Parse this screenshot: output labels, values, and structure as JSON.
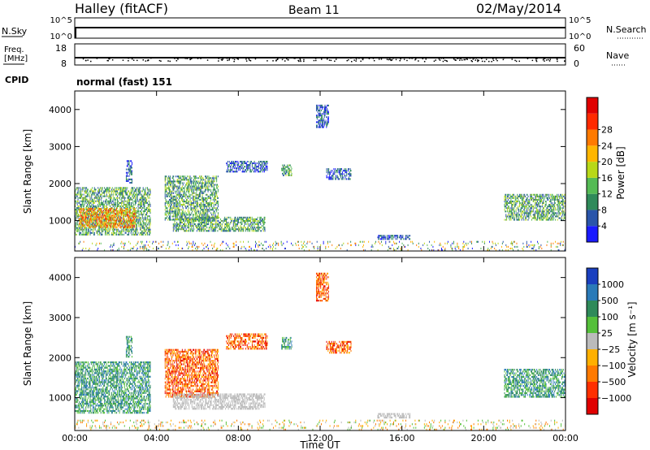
{
  "header": {
    "station": "Halley (fitACF)",
    "beam": "Beam 11",
    "date": "02/May/2014"
  },
  "top_panels": {
    "nsky": {
      "label": "N.Sky",
      "ticks": [
        "10^5",
        "10^0"
      ]
    },
    "nsearch": {
      "label": "N.Search",
      "ticks": [
        "10^5",
        "10^0"
      ]
    },
    "freq": {
      "label_line1": "Freq.",
      "label_line2": "[MHz]",
      "ticks": [
        "18",
        "8"
      ]
    },
    "nave": {
      "label": "Nave",
      "ticks": [
        "60",
        "0"
      ]
    },
    "cpid": {
      "label": "CPID",
      "value": "normal (fast) 151"
    }
  },
  "chart_data": [
    {
      "type": "heatmap",
      "name": "power",
      "ylabel": "Slant Range [km]",
      "xlabel": "Time UT",
      "x_ticks": [
        "00:00",
        "04:00",
        "08:00",
        "12:00",
        "16:00",
        "20:00",
        "00:00"
      ],
      "xlim_hours": [
        0,
        24
      ],
      "ylim_km": [
        180,
        4500
      ],
      "y_ticks": [
        1000,
        2000,
        3000,
        4000
      ],
      "colorbar": {
        "label": "Power [dB]",
        "ticks": [
          "4",
          "8",
          "12",
          "16",
          "20",
          "24",
          "28"
        ],
        "colors": [
          "#1a1aff",
          "#2a55aa",
          "#2f8a5a",
          "#55bb55",
          "#b8d818",
          "#ffb600",
          "#ff7a00",
          "#ff2a00",
          "#e00000"
        ]
      },
      "regions": [
        {
          "t0": 0.0,
          "t1": 3.7,
          "r0": 600,
          "r1": 1900,
          "level": "mid"
        },
        {
          "t0": 0.2,
          "t1": 3.0,
          "r0": 800,
          "r1": 1300,
          "level": "high"
        },
        {
          "t0": 4.4,
          "t1": 7.0,
          "r0": 1000,
          "r1": 2200,
          "level": "mid"
        },
        {
          "t0": 4.8,
          "t1": 9.3,
          "r0": 700,
          "r1": 1100,
          "level": "mid"
        },
        {
          "t0": 7.4,
          "t1": 9.4,
          "r0": 2300,
          "r1": 2600,
          "level": "low"
        },
        {
          "t0": 10.1,
          "t1": 10.6,
          "r0": 2200,
          "r1": 2500,
          "level": "mid"
        },
        {
          "t0": 11.8,
          "t1": 12.4,
          "r0": 3500,
          "r1": 4100,
          "level": "low"
        },
        {
          "t0": 12.3,
          "t1": 13.5,
          "r0": 2100,
          "r1": 2400,
          "level": "low"
        },
        {
          "t0": 2.5,
          "t1": 2.8,
          "r0": 2000,
          "r1": 2600,
          "level": "low"
        },
        {
          "t0": 21.0,
          "t1": 24.0,
          "r0": 1000,
          "r1": 1700,
          "level": "mid"
        },
        {
          "t0": 14.8,
          "t1": 16.4,
          "r0": 480,
          "r1": 600,
          "level": "low"
        },
        {
          "t0": 0.0,
          "t1": 24.0,
          "r0": 180,
          "r1": 420,
          "level": "noise"
        }
      ]
    },
    {
      "type": "heatmap",
      "name": "velocity",
      "ylabel": "Slant Range [km]",
      "xlabel": "Time UT",
      "x_ticks": [
        "00:00",
        "04:00",
        "08:00",
        "12:00",
        "16:00",
        "20:00",
        "00:00"
      ],
      "xlim_hours": [
        0,
        24
      ],
      "ylim_km": [
        180,
        4500
      ],
      "y_ticks": [
        1000,
        2000,
        3000,
        4000
      ],
      "colorbar": {
        "label": "Velocity [m s⁻¹]",
        "ticks": [
          "1000",
          "500",
          "100",
          "25",
          "−25",
          "−100",
          "−500",
          "−1000"
        ],
        "colors": [
          "#1a3fbf",
          "#2a7ab8",
          "#2f8a5a",
          "#55c03a",
          "#bbbbbb",
          "#ffb000",
          "#ff7a00",
          "#ff3000",
          "#e00000"
        ]
      },
      "regions": [
        {
          "t0": 0.0,
          "t1": 3.7,
          "r0": 600,
          "r1": 1900,
          "level": "pos"
        },
        {
          "t0": 2.5,
          "t1": 2.8,
          "r0": 2000,
          "r1": 2500,
          "level": "pos"
        },
        {
          "t0": 4.4,
          "t1": 7.0,
          "r0": 1000,
          "r1": 2200,
          "level": "neg"
        },
        {
          "t0": 4.8,
          "t1": 9.3,
          "r0": 700,
          "r1": 1100,
          "level": "neutral"
        },
        {
          "t0": 7.4,
          "t1": 9.4,
          "r0": 2200,
          "r1": 2600,
          "level": "neg"
        },
        {
          "t0": 10.1,
          "t1": 10.6,
          "r0": 2200,
          "r1": 2500,
          "level": "pos"
        },
        {
          "t0": 11.8,
          "t1": 12.4,
          "r0": 3400,
          "r1": 4100,
          "level": "neg"
        },
        {
          "t0": 12.3,
          "t1": 13.5,
          "r0": 2100,
          "r1": 2400,
          "level": "neg"
        },
        {
          "t0": 21.0,
          "t1": 24.0,
          "r0": 1000,
          "r1": 1700,
          "level": "pos"
        },
        {
          "t0": 14.8,
          "t1": 16.4,
          "r0": 480,
          "r1": 600,
          "level": "neutral"
        },
        {
          "t0": 0.0,
          "t1": 24.0,
          "r0": 180,
          "r1": 420,
          "level": "noise"
        }
      ]
    }
  ]
}
